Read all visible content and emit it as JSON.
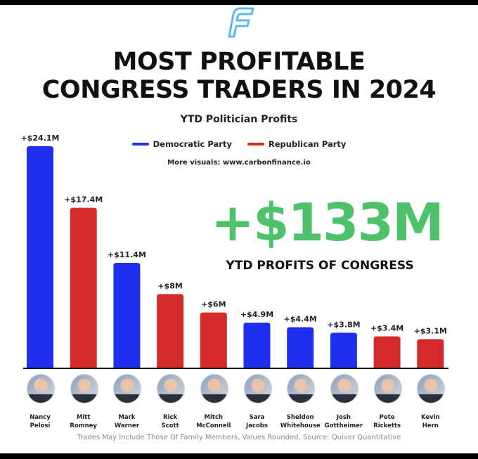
{
  "header": {
    "logo_icon": "carbon-finance-f-logo",
    "title_line1": "MOST PROFITABLE",
    "title_line2": "CONGRESS TRADERS IN 2024",
    "highlight_value": "+$133M",
    "highlight_caption": "YTD PROFITS OF CONGRESS",
    "more_visuals": "More visuals: www.carbonfinance.io"
  },
  "footer": {
    "note": "Trades May Include Those Of Family Members, Values Rounded, Source: Quiver Quantitative"
  },
  "colors": {
    "democratic": "#1f2ff0",
    "republican": "#d42a2a",
    "highlight": "#4ec26b",
    "logo": "#5bb8e8"
  },
  "chart_data": {
    "type": "bar",
    "title": "YTD Politician Profits",
    "legend": [
      {
        "name": "Democratic Party",
        "color": "#1f2ff0"
      },
      {
        "name": "Republican Party",
        "color": "#d42a2a"
      }
    ],
    "legend_placement": "top-center",
    "grid": false,
    "unit": "USD millions",
    "ylim": [
      0,
      24.1
    ],
    "categories": [
      {
        "first": "Nancy",
        "last": "Pelosi",
        "party": "Democratic Party",
        "value": 24.1,
        "label": "+$24.1M"
      },
      {
        "first": "Mitt",
        "last": "Romney",
        "party": "Republican Party",
        "value": 17.4,
        "label": "+$17.4M"
      },
      {
        "first": "Mark",
        "last": "Warner",
        "party": "Democratic Party",
        "value": 11.4,
        "label": "+$11.4M"
      },
      {
        "first": "Rick",
        "last": "Scott",
        "party": "Republican Party",
        "value": 8,
        "label": "+$8M"
      },
      {
        "first": "Mitch",
        "last": "McConnell",
        "party": "Republican Party",
        "value": 6,
        "label": "+$6M"
      },
      {
        "first": "Sara",
        "last": "Jacobs",
        "party": "Democratic Party",
        "value": 4.9,
        "label": "+$4.9M"
      },
      {
        "first": "Sheldon",
        "last": "Whitehouse",
        "party": "Democratic Party",
        "value": 4.4,
        "label": "+$4.4M"
      },
      {
        "first": "Josh",
        "last": "Gottheimer",
        "party": "Democratic Party",
        "value": 3.8,
        "label": "+$3.8M"
      },
      {
        "first": "Pete",
        "last": "Ricketts",
        "party": "Republican Party",
        "value": 3.4,
        "label": "+$3.4M"
      },
      {
        "first": "Kevin",
        "last": "Hern",
        "party": "Republican Party",
        "value": 3.1,
        "label": "+$3.1M"
      }
    ]
  }
}
